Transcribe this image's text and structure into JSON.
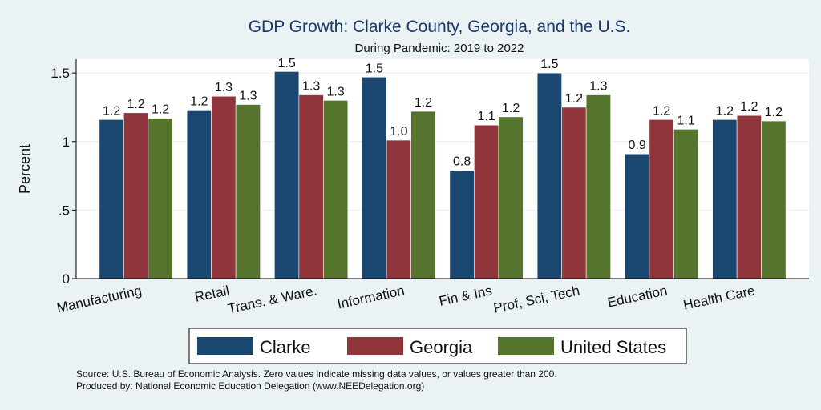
{
  "chart_data": {
    "type": "bar",
    "title": "GDP Growth: Clarke County, Georgia, and the U.S.",
    "subtitle": "During Pandemic: 2019 to 2022",
    "ylabel": "Percent",
    "xlabel": "",
    "ylim": [
      0,
      1.6
    ],
    "yticks": [
      0,
      0.5,
      1,
      1.5
    ],
    "ytick_labels": [
      "0",
      ".5",
      "1",
      "1.5"
    ],
    "grid": true,
    "legend_position": "bottom",
    "categories": [
      "Manufacturing",
      "Retail",
      "Trans. & Ware.",
      "Information",
      "Fin & Ins",
      "Prof, Sci, Tech",
      "Education",
      "Health Care"
    ],
    "series": [
      {
        "name": "Clarke",
        "color": "#1a476f",
        "values": [
          1.16,
          1.23,
          1.51,
          1.47,
          0.79,
          1.5,
          0.91,
          1.16
        ],
        "labels": [
          "1.2",
          "1.2",
          "1.5",
          "1.5",
          "0.8",
          "1.5",
          "0.9",
          "1.2"
        ]
      },
      {
        "name": "Georgia",
        "color": "#90353b",
        "values": [
          1.21,
          1.33,
          1.34,
          1.01,
          1.12,
          1.25,
          1.16,
          1.19
        ],
        "labels": [
          "1.2",
          "1.3",
          "1.3",
          "1.0",
          "1.1",
          "1.2",
          "1.2",
          "1.2"
        ]
      },
      {
        "name": "United States",
        "color": "#55752f",
        "values": [
          1.17,
          1.27,
          1.3,
          1.22,
          1.18,
          1.34,
          1.09,
          1.15
        ],
        "labels": [
          "1.2",
          "1.3",
          "1.3",
          "1.2",
          "1.2",
          "1.3",
          "1.1",
          "1.2"
        ]
      }
    ],
    "notes": [
      "Source: U.S. Bureau of Economic Analysis. Zero values indicate missing data values, or values greater than 200.",
      "Produced by: National Economic Education Delegation (www.NEEDelegation.org)"
    ]
  }
}
